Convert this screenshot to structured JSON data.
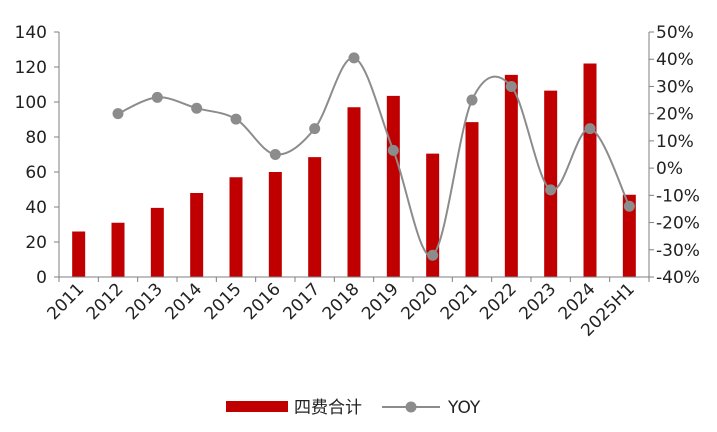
{
  "chart_data": {
    "type": "bar",
    "categories": [
      "2011",
      "2012",
      "2013",
      "2014",
      "2015",
      "2016",
      "2017",
      "2018",
      "2019",
      "2020",
      "2021",
      "2022",
      "2023",
      "2024",
      "2025H1"
    ],
    "series": [
      {
        "name": "四费合计",
        "type": "bar",
        "axis": "left",
        "color": "#c00000",
        "values": [
          26,
          31,
          39.5,
          48,
          57,
          60,
          68.5,
          97,
          103.5,
          70.5,
          88.5,
          115.5,
          106.5,
          122,
          47
        ]
      },
      {
        "name": "YOY",
        "type": "line",
        "axis": "right",
        "unit": "%",
        "color": "#8c8c8c",
        "values": [
          null,
          20,
          26,
          22,
          18,
          5,
          14.5,
          40.5,
          6.5,
          -32,
          25,
          30,
          -8,
          14.5,
          -14
        ]
      }
    ],
    "y_left": {
      "min": 0,
      "max": 140,
      "ticks": [
        0,
        20,
        40,
        60,
        80,
        100,
        120,
        140
      ]
    },
    "y_right": {
      "min": -40,
      "max": 50,
      "ticks": [
        -40,
        -30,
        -20,
        -10,
        0,
        10,
        20,
        30,
        40,
        50
      ],
      "tick_labels": [
        "-40%",
        "-30%",
        "-20%",
        "-10%",
        "0%",
        "10%",
        "20%",
        "30%",
        "40%",
        "50%"
      ]
    },
    "legend": {
      "position": "bottom",
      "items": [
        "四费合计",
        "YOY"
      ]
    },
    "grid": false
  }
}
